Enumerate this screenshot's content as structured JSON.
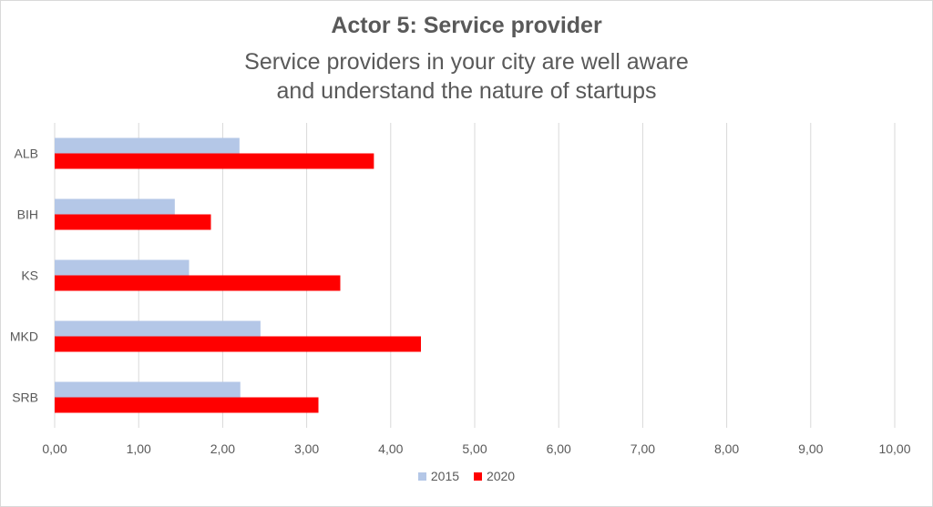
{
  "chart_data": {
    "type": "bar",
    "orientation": "horizontal",
    "title": "Actor 5: Service provider",
    "subtitle": "Service providers in your city are well aware and understand the nature of startups",
    "categories": [
      "ALB",
      "BIH",
      "KS",
      "MKD",
      "SRB"
    ],
    "series": [
      {
        "name": "2015",
        "color": "#b4c7e7",
        "values": [
          2.2,
          1.43,
          1.6,
          2.45,
          2.21
        ]
      },
      {
        "name": "2020",
        "color": "#ff0000",
        "values": [
          3.8,
          1.86,
          3.4,
          4.36,
          3.14
        ]
      }
    ],
    "xlim": [
      0,
      10
    ],
    "xticks": [
      "0,00",
      "1,00",
      "2,00",
      "3,00",
      "4,00",
      "5,00",
      "6,00",
      "7,00",
      "8,00",
      "9,00",
      "10,00"
    ],
    "grid": "vertical",
    "legend_position": "bottom"
  }
}
